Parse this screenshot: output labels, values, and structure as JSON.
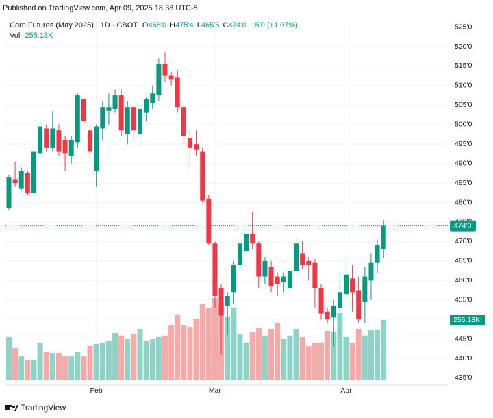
{
  "header": {
    "published": "Published on TradingView.com, Apr 09, 2025 18:38 UTC-5",
    "brand": "TradingView"
  },
  "chart_data": {
    "type": "candlestick",
    "symbol": "Corn Futures (May 2025) · 1D · CBOT",
    "ohlc_legend": [
      {
        "key": "O",
        "value": "468'0"
      },
      {
        "key": "H",
        "value": "475'4"
      },
      {
        "key": "L",
        "value": "465'6"
      },
      {
        "key": "C",
        "value": "474'0"
      }
    ],
    "change": "+5'0 (+1.07%)",
    "up_color": "#089981",
    "down_color": "#f23645",
    "categories": [
      null,
      null,
      null,
      null,
      null,
      null,
      null,
      null,
      null,
      null,
      null,
      null,
      null,
      null,
      "Feb",
      null,
      null,
      null,
      null,
      null,
      null,
      null,
      null,
      null,
      null,
      null,
      null,
      null,
      null,
      null,
      null,
      null,
      null,
      "Mar",
      null,
      null,
      null,
      null,
      null,
      null,
      null,
      null,
      null,
      null,
      null,
      null,
      null,
      null,
      null,
      null,
      null,
      null,
      null,
      null,
      "Apr",
      null,
      null,
      null,
      null,
      null,
      null
    ],
    "open": [
      478.5,
      486,
      483.5,
      487.5,
      482.5,
      492.5,
      499,
      494,
      498.5,
      496,
      492,
      495.5,
      506.5,
      498.5,
      488,
      499,
      503.5,
      504,
      507.5,
      497.5,
      504.5,
      497.5,
      503,
      505.5,
      507.5,
      515.5,
      512.5,
      512,
      504.5,
      496.5,
      495,
      493,
      481,
      469.5,
      458,
      453.5,
      457,
      464,
      467.5,
      472,
      469.5,
      461,
      463.5,
      461,
      459.5,
      458,
      462.5,
      467,
      465,
      464.5,
      458,
      452,
      450.5,
      453,
      456.5,
      460.5,
      457.5,
      454.5,
      460,
      464.5,
      468
    ],
    "high": [
      487,
      490.5,
      489,
      488,
      494,
      501,
      500,
      503.5,
      500,
      497,
      497,
      508,
      507,
      500,
      500,
      506,
      508,
      509,
      509,
      506,
      505,
      505,
      507,
      510,
      517,
      518.5,
      513.5,
      514,
      505,
      499,
      498.5,
      494,
      482,
      470,
      459,
      457,
      465,
      471,
      474,
      477.5,
      470,
      466,
      465,
      462,
      462,
      463,
      471,
      470,
      466,
      465.5,
      459,
      453,
      455,
      462,
      466,
      464,
      461,
      463.5,
      467,
      470.5,
      475.5
    ],
    "low": [
      478,
      484,
      483,
      482,
      482,
      492,
      493,
      493,
      492,
      488,
      490,
      494,
      500,
      491,
      484,
      496,
      500,
      503,
      497,
      495,
      496,
      495,
      501,
      504,
      506,
      511,
      510,
      503,
      495,
      489,
      492,
      480,
      469,
      453,
      441,
      446,
      454,
      463,
      466,
      468,
      458,
      459,
      457,
      456,
      457,
      456,
      461,
      463,
      460,
      453,
      450,
      449,
      443,
      446,
      454,
      452,
      449,
      449,
      455,
      462,
      465.75
    ],
    "close": [
      486.4,
      485,
      488,
      482.5,
      493,
      499.5,
      494,
      499,
      493,
      492.5,
      496,
      507.5,
      501,
      493,
      499.5,
      504.5,
      504.5,
      507.5,
      498.5,
      504.5,
      498.5,
      504,
      506.5,
      508,
      515.5,
      512.5,
      511.5,
      504.5,
      497,
      494,
      493.5,
      480.5,
      469.5,
      456,
      451,
      456,
      464,
      469.5,
      472,
      469.5,
      461,
      465,
      458.5,
      459,
      461,
      462.5,
      469.5,
      464,
      464,
      458,
      451.5,
      450,
      453.5,
      457,
      461.5,
      457,
      450,
      461,
      464.5,
      469,
      474
    ],
    "volume": {
      "name": "Vol",
      "last_label": "255.18K",
      "up_color": "#8fd3c6",
      "down_color": "#f7a9a7",
      "values": [
        183000,
        136000,
        101000,
        87000,
        87000,
        160000,
        122000,
        116000,
        116000,
        101000,
        101000,
        122000,
        101000,
        145000,
        154000,
        160000,
        168000,
        200000,
        189000,
        174000,
        197000,
        218000,
        168000,
        174000,
        183000,
        189000,
        232000,
        279000,
        232000,
        226000,
        261000,
        325000,
        305000,
        348000,
        319000,
        270000,
        308000,
        194000,
        160000,
        203000,
        223000,
        189000,
        218000,
        241000,
        174000,
        189000,
        218000,
        183000,
        145000,
        160000,
        160000,
        209000,
        206000,
        284000,
        183000,
        160000,
        218000,
        189000,
        212000,
        215000,
        255180
      ]
    },
    "last_price": {
      "value": 474,
      "label": "474'0"
    },
    "ylim": [
      433.5,
      526.5
    ],
    "yticks": [
      {
        "value": 435,
        "label": "435'0"
      },
      {
        "value": 440,
        "label": "440'0"
      },
      {
        "value": 445,
        "label": "445'0"
      },
      {
        "value": 450,
        "label": "450'0"
      },
      {
        "value": 455,
        "label": "455'0"
      },
      {
        "value": 460,
        "label": "460'0"
      },
      {
        "value": 465,
        "label": "465'0"
      },
      {
        "value": 470,
        "label": "470'0"
      },
      {
        "value": 475,
        "label": "475'0"
      },
      {
        "value": 480,
        "label": "480'0"
      },
      {
        "value": 485,
        "label": "485'0"
      },
      {
        "value": 490,
        "label": "490'0"
      },
      {
        "value": 495,
        "label": "495'0"
      },
      {
        "value": 500,
        "label": "500'0"
      },
      {
        "value": 505,
        "label": "505'0"
      },
      {
        "value": 510,
        "label": "510'0"
      },
      {
        "value": 515,
        "label": "515'0"
      },
      {
        "value": 520,
        "label": "520'0"
      },
      {
        "value": 525,
        "label": "525'0"
      }
    ],
    "grid": true
  }
}
